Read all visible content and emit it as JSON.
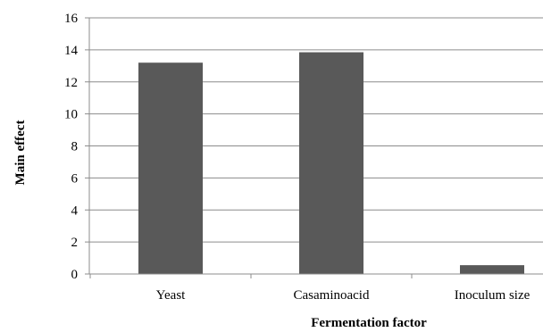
{
  "chart_data": {
    "type": "bar",
    "categories": [
      "Yeast",
      "Casaminoacid",
      "Inoculum size"
    ],
    "values": [
      13.2,
      13.85,
      0.55
    ],
    "xlabel": "Fermentation factor",
    "ylabel": "Main effect",
    "ylim": [
      0,
      16
    ],
    "yticks": [
      "0",
      "2",
      "4",
      "6",
      "8",
      "10",
      "12",
      "14",
      "16"
    ],
    "grid": true,
    "legend": "none",
    "bar_color": "#595959",
    "grid_color": "#8c8c8c"
  }
}
